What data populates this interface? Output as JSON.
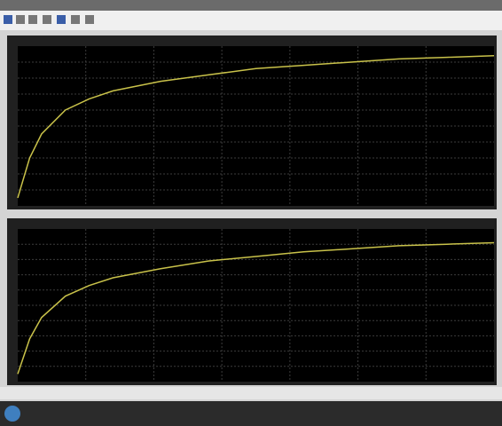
{
  "chart_data": [
    {
      "type": "line",
      "color": "#c9c24a",
      "grid": true,
      "xlim": [
        0,
        10
      ],
      "ylim": [
        0,
        1
      ],
      "x": [
        0,
        0.25,
        0.5,
        1,
        1.5,
        2,
        3,
        4,
        5,
        6,
        7,
        8,
        9,
        10
      ],
      "values": [
        0.05,
        0.3,
        0.45,
        0.6,
        0.67,
        0.72,
        0.78,
        0.82,
        0.86,
        0.88,
        0.9,
        0.92,
        0.93,
        0.94
      ]
    },
    {
      "type": "line",
      "color": "#c9c24a",
      "grid": true,
      "xlim": [
        0,
        10
      ],
      "ylim": [
        0,
        1
      ],
      "x": [
        0,
        0.25,
        0.5,
        1,
        1.5,
        2,
        3,
        4,
        5,
        6,
        7,
        8,
        9,
        10
      ],
      "values": [
        0.05,
        0.28,
        0.42,
        0.56,
        0.63,
        0.68,
        0.74,
        0.79,
        0.82,
        0.85,
        0.87,
        0.89,
        0.9,
        0.91
      ]
    }
  ]
}
